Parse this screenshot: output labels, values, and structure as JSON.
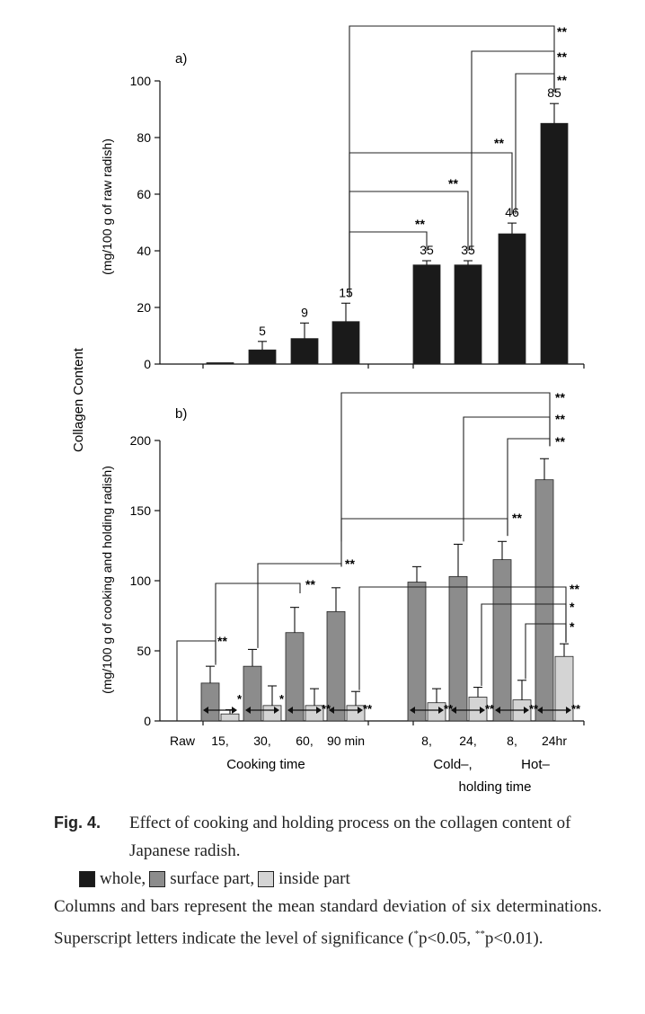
{
  "chart_data": [
    {
      "id": "a",
      "type": "bar",
      "panel_label": "a)",
      "ylabel": "(mg/100 g of raw radish)",
      "ylim": [
        0,
        100
      ],
      "yticks": [
        0,
        20,
        40,
        60,
        80,
        100
      ],
      "categories": [
        "Raw",
        "15,",
        "30,",
        "60,",
        "90 min",
        "8,",
        "24,",
        "8,",
        "24hr"
      ],
      "series": [
        {
          "name": "whole",
          "color": "#1a1a1a",
          "values": [
            null,
            0.3,
            5,
            9,
            15,
            35,
            35,
            46,
            85
          ],
          "errors": [
            null,
            0,
            3,
            5.5,
            6.5,
            1.5,
            1.5,
            3.8,
            7
          ]
        }
      ],
      "value_labels": [
        "",
        "",
        "5",
        "9",
        "15",
        "35",
        "35",
        "46",
        "85"
      ],
      "significance": [
        {
          "from": 4,
          "to": 5,
          "label": "**"
        },
        {
          "from": 4,
          "to": 6,
          "label": "**"
        },
        {
          "from": 4,
          "to": 7,
          "label": "**"
        },
        {
          "from": 4,
          "to": 8,
          "label": "**"
        },
        {
          "from": 6,
          "to": 8,
          "label": "**"
        },
        {
          "from": 7,
          "to": 8,
          "label": "**"
        }
      ]
    },
    {
      "id": "b",
      "type": "bar",
      "panel_label": "b)",
      "ylabel": "(mg/100 g of cooking and holding radish)",
      "ylim": [
        0,
        200
      ],
      "yticks": [
        0,
        50,
        100,
        150,
        200
      ],
      "categories": [
        "Raw",
        "15,",
        "30,",
        "60,",
        "90 min",
        "8,",
        "24,",
        "8,",
        "24hr"
      ],
      "series": [
        {
          "name": "surface part",
          "color": "#8c8c8c",
          "values": [
            0,
            27,
            39,
            63,
            78,
            99,
            103,
            115,
            172
          ],
          "errors": [
            0,
            12,
            12,
            18,
            17,
            11,
            23,
            13,
            15
          ]
        },
        {
          "name": "inside part",
          "color": "#d4d4d4",
          "values": [
            0,
            5,
            11,
            11,
            11,
            13,
            17,
            15,
            46
          ],
          "errors": [
            0,
            3,
            14,
            12,
            10,
            10,
            7,
            14,
            9
          ]
        }
      ],
      "significance": [
        {
          "from": 0,
          "to": 1,
          "label": "**"
        },
        {
          "from": 1,
          "to": 3,
          "label": "**"
        },
        {
          "from": 2,
          "to": 4,
          "label": "**"
        },
        {
          "from": 4,
          "to": 7,
          "label": "**"
        },
        {
          "from": 4,
          "to": 8,
          "label": "**"
        },
        {
          "from": 6,
          "to": 8,
          "label": "**"
        },
        {
          "from": 7,
          "to": 8,
          "label": "**"
        }
      ],
      "inside_significance": [
        {
          "from": 4,
          "to": 8,
          "label": "**"
        },
        {
          "from": 6,
          "to": 8,
          "label": "*"
        },
        {
          "from": 7,
          "to": 8,
          "label": "*"
        }
      ],
      "pair_labels": [
        "",
        "*",
        "*",
        "**",
        "**",
        "**",
        "**",
        "**",
        "**"
      ],
      "grid": false
    }
  ],
  "shared": {
    "ylabel_main": "Collagen Content",
    "xlabel_cooking": "Cooking time",
    "xlabel_holding_1": "Cold–,",
    "xlabel_holding_2": "Hot–",
    "xlabel_holding_3": "holding time"
  },
  "caption": {
    "label": "Fig. 4.",
    "title": "Effect of cooking and holding process on the collagen content of Japanese radish.",
    "legend_whole": "whole,",
    "legend_surface": "surface part,",
    "legend_inside": "inside part",
    "notes": "Columns and bars represent the mean standard deviation of six determinations. Superscript letters indicate the level of significance (",
    "p1_mark": "*",
    "p1_text": "p<0.05,",
    "p2_mark": "**",
    "p2_text": "p<0.01)."
  }
}
